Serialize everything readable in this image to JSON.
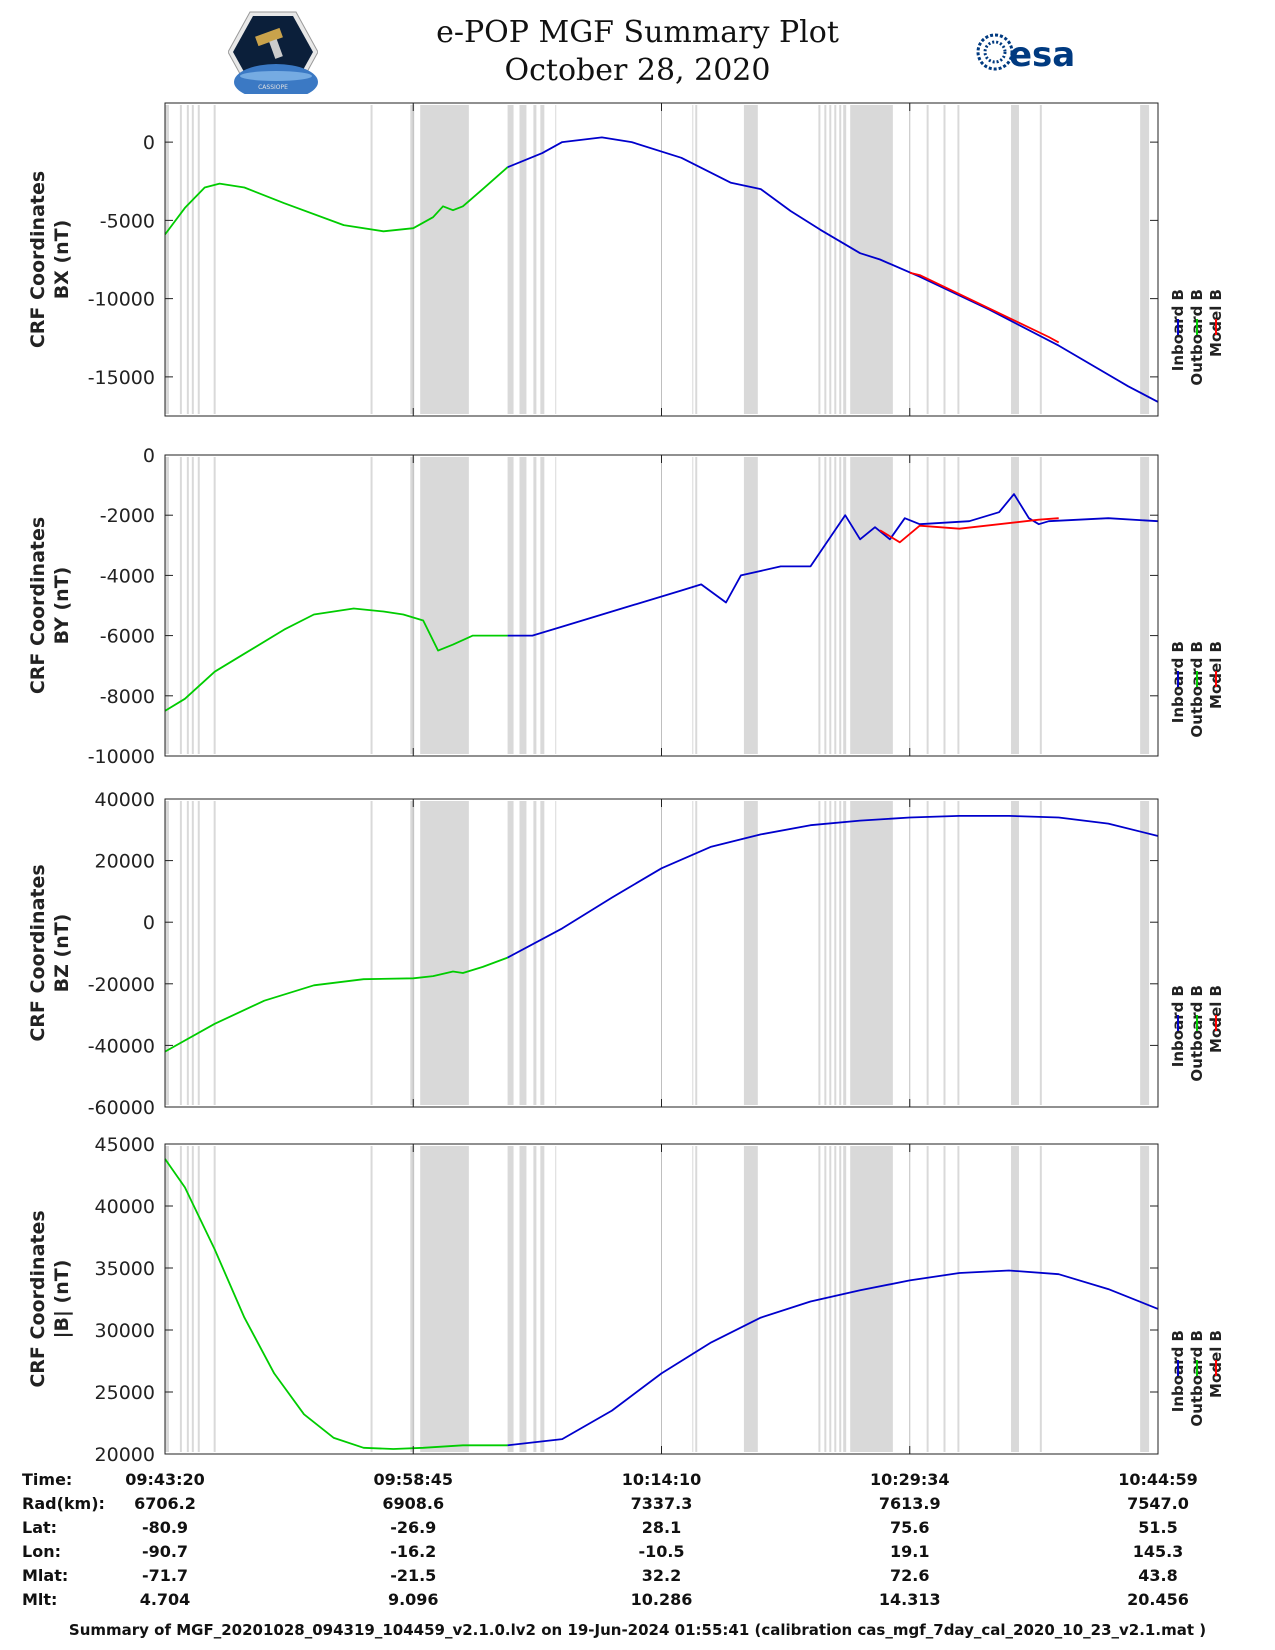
{
  "header": {
    "title_line1": "e-POP MGF Summary Plot",
    "title_line2": "October 28, 2020",
    "left_logo_text": "CASSIOPE",
    "right_logo_text": "esa"
  },
  "colors": {
    "inboard": "#0000cc",
    "outboard": "#00cc00",
    "model": "#ff0000",
    "shade": "#d9d9d9",
    "grid": "#bfbfbf"
  },
  "legend": [
    "Inboard B",
    "Outboard B",
    "Model B"
  ],
  "chart_data": [
    {
      "type": "line",
      "ylabel_line1": "CRF Coordinates",
      "ylabel_line2": "BX (nT)",
      "ylim": [
        -17500,
        2500
      ],
      "yticks": [
        0,
        -5000,
        -10000,
        -15000
      ],
      "series": [
        {
          "name": "Outboard B",
          "color": "#00cc00",
          "t": [
            0,
            0.02,
            0.04,
            0.055,
            0.08,
            0.12,
            0.18,
            0.22,
            0.25,
            0.27,
            0.28,
            0.29,
            0.3,
            0.32,
            0.345
          ],
          "v": [
            -5900,
            -4200,
            -2900,
            -2650,
            -2900,
            -3900,
            -5300,
            -5700,
            -5500,
            -4800,
            -4100,
            -4350,
            -4100,
            -3000,
            -1600
          ]
        },
        {
          "name": "Inboard B",
          "color": "#0000cc",
          "t": [
            0.345,
            0.38,
            0.4,
            0.44,
            0.47,
            0.52,
            0.57,
            0.6,
            0.63,
            0.66,
            0.7,
            0.72,
            0.76,
            0.83,
            0.9,
            0.97,
            1.0
          ],
          "v": [
            -1600,
            -700,
            0,
            300,
            0,
            -1000,
            -2600,
            -3000,
            -4400,
            -5600,
            -7100,
            -7500,
            -8600,
            -10700,
            -13000,
            -15600,
            -16600
          ]
        },
        {
          "name": "Model B",
          "color": "#ff0000",
          "t": [
            0.75,
            0.76,
            0.89,
            0.9
          ],
          "v": [
            -8350,
            -8500,
            -12450,
            -12800
          ]
        }
      ]
    },
    {
      "type": "line",
      "ylabel_line1": "CRF Coordinates",
      "ylabel_line2": "BY (nT)",
      "ylim": [
        -10000,
        0
      ],
      "yticks": [
        0,
        -2000,
        -4000,
        -6000,
        -8000,
        -10000
      ],
      "series": [
        {
          "name": "Outboard B",
          "color": "#00cc00",
          "t": [
            0,
            0.02,
            0.05,
            0.08,
            0.12,
            0.15,
            0.19,
            0.22,
            0.24,
            0.26,
            0.275,
            0.29,
            0.31,
            0.345
          ],
          "v": [
            -8500,
            -8100,
            -7200,
            -6600,
            -5800,
            -5300,
            -5100,
            -5200,
            -5300,
            -5500,
            -6500,
            -6300,
            -6000,
            -6000
          ]
        },
        {
          "name": "Inboard B",
          "color": "#0000cc",
          "t": [
            0.345,
            0.37,
            0.4,
            0.46,
            0.52,
            0.54,
            0.565,
            0.58,
            0.62,
            0.65,
            0.685,
            0.7,
            0.715,
            0.73,
            0.745,
            0.76,
            0.81,
            0.84,
            0.855,
            0.87,
            0.88,
            0.89,
            0.95,
            1.0
          ],
          "v": [
            -6000,
            -6000,
            -5700,
            -5100,
            -4500,
            -4300,
            -4900,
            -4000,
            -3700,
            -3700,
            -2000,
            -2800,
            -2400,
            -2800,
            -2100,
            -2300,
            -2200,
            -1900,
            -1300,
            -2100,
            -2300,
            -2200,
            -2100,
            -2200
          ]
        },
        {
          "name": "Model B",
          "color": "#ff0000",
          "t": [
            0.72,
            0.74,
            0.76,
            0.8,
            0.88,
            0.9
          ],
          "v": [
            -2500,
            -2900,
            -2350,
            -2450,
            -2150,
            -2100
          ]
        }
      ]
    },
    {
      "type": "line",
      "ylabel_line1": "CRF Coordinates",
      "ylabel_line2": "BZ (nT)",
      "ylim": [
        -60000,
        40000
      ],
      "yticks": [
        40000,
        20000,
        0,
        -20000,
        -40000,
        -60000
      ],
      "series": [
        {
          "name": "Outboard B",
          "color": "#00cc00",
          "t": [
            0,
            0.05,
            0.1,
            0.15,
            0.2,
            0.25,
            0.27,
            0.29,
            0.3,
            0.32,
            0.345
          ],
          "v": [
            -42000,
            -33000,
            -25500,
            -20500,
            -18500,
            -18200,
            -17500,
            -16000,
            -16500,
            -14500,
            -11500
          ]
        },
        {
          "name": "Inboard B",
          "color": "#0000cc",
          "t": [
            0.345,
            0.4,
            0.45,
            0.5,
            0.55,
            0.6,
            0.65,
            0.7,
            0.75,
            0.8,
            0.85,
            0.9,
            0.95,
            1.0
          ],
          "v": [
            -11500,
            -2000,
            8000,
            17500,
            24500,
            28500,
            31500,
            33000,
            34000,
            34500,
            34500,
            34000,
            32000,
            28000
          ]
        }
      ]
    },
    {
      "type": "line",
      "ylabel_line1": "CRF Coordinates",
      "ylabel_line2": "|B| (nT)",
      "ylim": [
        20000,
        45000
      ],
      "yticks": [
        45000,
        40000,
        35000,
        30000,
        25000,
        20000
      ],
      "series": [
        {
          "name": "Outboard B",
          "color": "#00cc00",
          "t": [
            0,
            0.02,
            0.05,
            0.08,
            0.11,
            0.14,
            0.17,
            0.2,
            0.23,
            0.26,
            0.3,
            0.345
          ],
          "v": [
            43800,
            41500,
            36500,
            31000,
            26500,
            23200,
            21300,
            20500,
            20400,
            20500,
            20700,
            20700
          ]
        },
        {
          "name": "Inboard B",
          "color": "#0000cc",
          "t": [
            0.345,
            0.4,
            0.45,
            0.5,
            0.55,
            0.6,
            0.65,
            0.7,
            0.75,
            0.8,
            0.85,
            0.9,
            0.95,
            1.0
          ],
          "v": [
            20700,
            21200,
            23500,
            26500,
            29000,
            31000,
            32300,
            33200,
            34000,
            34600,
            34800,
            34500,
            33300,
            31700
          ]
        }
      ]
    }
  ],
  "gaps": [
    [
      0.0,
      0.004
    ],
    [
      0.015,
      0.017
    ],
    [
      0.022,
      0.024
    ],
    [
      0.027,
      0.029
    ],
    [
      0.033,
      0.035
    ],
    [
      0.049,
      0.051
    ],
    [
      0.207,
      0.209
    ],
    [
      0.247,
      0.251
    ],
    [
      0.257,
      0.306
    ],
    [
      0.345,
      0.351
    ],
    [
      0.357,
      0.364
    ],
    [
      0.371,
      0.374
    ],
    [
      0.378,
      0.382
    ],
    [
      0.393,
      0.394
    ],
    [
      0.531,
      0.532
    ],
    [
      0.534,
      0.536
    ],
    [
      0.583,
      0.597
    ],
    [
      0.658,
      0.66
    ],
    [
      0.664,
      0.666
    ],
    [
      0.669,
      0.671
    ],
    [
      0.674,
      0.676
    ],
    [
      0.679,
      0.681
    ],
    [
      0.683,
      0.686
    ],
    [
      0.69,
      0.733
    ],
    [
      0.767,
      0.769
    ],
    [
      0.784,
      0.786
    ],
    [
      0.798,
      0.8
    ],
    [
      0.852,
      0.86
    ],
    [
      0.881,
      0.883
    ],
    [
      0.982,
      0.991
    ]
  ],
  "ephemeris": {
    "labels": [
      "Time:",
      "Rad(km):",
      "Lat:",
      "Lon:",
      "Mlat:",
      "Mlt:"
    ],
    "columns": [
      [
        "09:43:20",
        "6706.2",
        "-80.9",
        "-90.7",
        "-71.7",
        "4.704"
      ],
      [
        "09:58:45",
        "6908.6",
        "-26.9",
        "-16.2",
        "-21.5",
        "9.096"
      ],
      [
        "10:14:10",
        "7337.3",
        "28.1",
        "-10.5",
        "32.2",
        "10.286"
      ],
      [
        "10:29:34",
        "7613.9",
        "75.6",
        "19.1",
        "72.6",
        "14.313"
      ],
      [
        "10:44:59",
        "7547.0",
        "51.5",
        "145.3",
        "43.8",
        "20.456"
      ]
    ]
  },
  "footer": "Summary of MGF_20201028_094319_104459_v2.1.0.lv2 on 19-Jun-2024 01:55:41 (calibration cas_mgf_7day_cal_2020_10_23_v2.1.mat )"
}
